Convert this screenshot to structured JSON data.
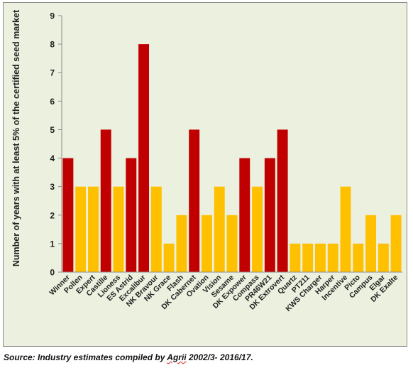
{
  "chart_data": {
    "type": "bar",
    "title": "",
    "xlabel": "",
    "ylabel": "Number of years with at least 5% of the certified seed market",
    "ylim": [
      0,
      9
    ],
    "yticks": [
      0,
      1,
      2,
      3,
      4,
      5,
      6,
      7,
      8,
      9
    ],
    "grid": false,
    "legend": "none",
    "colors": {
      "dark_red": "#c00000",
      "gold": "#ffc000",
      "background": "#ebf0df"
    },
    "categories": [
      "Winner",
      "Pollen",
      "Expert",
      "Castille",
      "Lioness",
      "ES Astrid",
      "Excalibur",
      "NK Bravour",
      "NK Grace",
      "Flash",
      "DK Cabernet",
      "Ovation",
      "Vision",
      "Sesame",
      "DK Expower",
      "Compass",
      "PR46W21",
      "DK Extrovert",
      "Quartz",
      "PT211",
      "KWS Charger",
      "Harper",
      "Incentive",
      "Picto",
      "Campus",
      "Elgar",
      "DK Exalte"
    ],
    "values": [
      4,
      3,
      3,
      5,
      3,
      4,
      8,
      3,
      1,
      2,
      5,
      2,
      3,
      2,
      4,
      3,
      4,
      5,
      1,
      1,
      1,
      1,
      3,
      1,
      2,
      1,
      2
    ],
    "bar_colors": [
      "#c00000",
      "#ffc000",
      "#ffc000",
      "#c00000",
      "#ffc000",
      "#c00000",
      "#c00000",
      "#ffc000",
      "#ffc000",
      "#ffc000",
      "#c00000",
      "#ffc000",
      "#ffc000",
      "#ffc000",
      "#c00000",
      "#ffc000",
      "#c00000",
      "#c00000",
      "#ffc000",
      "#ffc000",
      "#ffc000",
      "#ffc000",
      "#ffc000",
      "#ffc000",
      "#ffc000",
      "#ffc000",
      "#ffc000"
    ]
  },
  "source": {
    "prefix": "Source: Industry estimates compiled by ",
    "company": "Agrii",
    "suffix": " 2002/3- 2016/17."
  }
}
